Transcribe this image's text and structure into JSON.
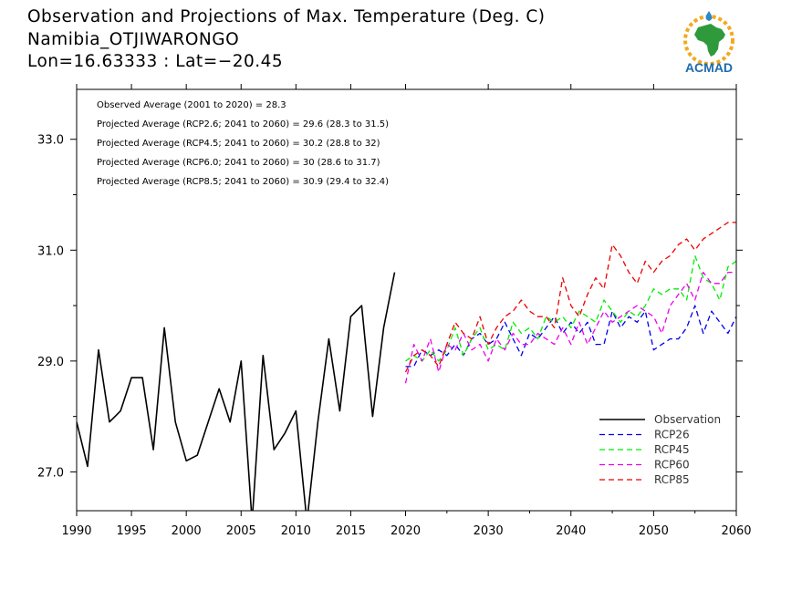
{
  "title": {
    "line1": "Observation and Projections of Max. Temperature (Deg. C)",
    "line2": "Namibia_OTJIWARONGO",
    "line3": "Lon=16.63333 : Lat=−20.45"
  },
  "logo": {
    "text": "ACMAD",
    "icon": "acmad-africa-logo"
  },
  "annotations": [
    "Observed Average (2001 to 2020) = 28.3",
    "Projected Average (RCP2.6; 2041 to 2060) = 29.6 (28.3 to 31.5)",
    "Projected Average (RCP4.5; 2041 to 2060) = 30.2 (28.8 to 32)",
    "Projected Average (RCP6.0; 2041 to 2060) = 30 (28.6 to 31.7)",
    "Projected Average (RCP8.5; 2041 to 2060) = 30.9 (29.4 to 32.4)"
  ],
  "chart_data": {
    "type": "line",
    "xlim": [
      1990,
      2060
    ],
    "ylim": [
      26.3,
      33.9
    ],
    "x_ticks": [
      "1990",
      "1995",
      "2000",
      "2005",
      "2010",
      "2015",
      "2020",
      "2030",
      "2040",
      "2050",
      "2060"
    ],
    "y_ticks": [
      "27.0",
      "29.0",
      "31.0",
      "33.0"
    ],
    "grid": false,
    "legend_placement": "bottom-right",
    "series": [
      {
        "name": "Observation",
        "color": "#000000",
        "dashed": false,
        "x": [
          1990,
          1991,
          1992,
          1993,
          1994,
          1995,
          1996,
          1997,
          1998,
          1999,
          2000,
          2001,
          2002,
          2003,
          2004,
          2005,
          2006,
          2007,
          2008,
          2009,
          2010,
          2011,
          2012,
          2013,
          2014,
          2015,
          2016,
          2017,
          2018,
          2019,
          2020
        ],
        "y": [
          27.9,
          27.1,
          29.2,
          27.9,
          28.1,
          28.7,
          28.7,
          27.4,
          29.6,
          27.9,
          27.2,
          27.3,
          27.9,
          28.5,
          27.9,
          29.0,
          26.1,
          29.1,
          27.4,
          27.7,
          28.1,
          26.1,
          27.9,
          29.4,
          28.1,
          29.8,
          30.0,
          28.0,
          29.6,
          30.6,
          null
        ]
      },
      {
        "name": "RCP26",
        "color": "#0000ee",
        "dashed": true,
        "x": [
          2020,
          2021,
          2022,
          2023,
          2024,
          2025,
          2026,
          2027,
          2028,
          2029,
          2030,
          2031,
          2032,
          2033,
          2034,
          2035,
          2036,
          2037,
          2038,
          2039,
          2040,
          2041,
          2042,
          2043,
          2044,
          2045,
          2046,
          2047,
          2048,
          2049,
          2050,
          2051,
          2052,
          2053,
          2054,
          2055,
          2056,
          2057,
          2058,
          2059,
          2060
        ],
        "y": [
          28.9,
          28.9,
          29.2,
          29.1,
          29.2,
          29.1,
          29.3,
          29.1,
          29.4,
          29.5,
          29.3,
          29.4,
          29.7,
          29.4,
          29.1,
          29.5,
          29.4,
          29.6,
          29.8,
          29.5,
          29.7,
          29.5,
          29.7,
          29.3,
          29.3,
          29.9,
          29.6,
          29.8,
          29.7,
          29.9,
          29.2,
          29.3,
          29.4,
          29.4,
          29.6,
          30.0,
          29.5,
          29.9,
          29.7,
          29.5,
          29.8
        ]
      },
      {
        "name": "RCP45",
        "color": "#00ee00",
        "dashed": true,
        "x": [
          2020,
          2021,
          2022,
          2023,
          2024,
          2025,
          2026,
          2027,
          2028,
          2029,
          2030,
          2031,
          2032,
          2033,
          2034,
          2035,
          2036,
          2037,
          2038,
          2039,
          2040,
          2041,
          2042,
          2043,
          2044,
          2045,
          2046,
          2047,
          2048,
          2049,
          2050,
          2051,
          2052,
          2053,
          2054,
          2055,
          2056,
          2057,
          2058,
          2059,
          2060
        ],
        "y": [
          29.0,
          29.1,
          29.0,
          29.2,
          29.0,
          29.2,
          29.6,
          29.1,
          29.4,
          29.6,
          29.2,
          29.3,
          29.2,
          29.7,
          29.5,
          29.6,
          29.4,
          29.8,
          29.7,
          29.8,
          29.6,
          29.9,
          29.8,
          29.7,
          30.1,
          29.9,
          29.7,
          29.9,
          29.8,
          30.0,
          30.3,
          30.2,
          30.3,
          30.3,
          30.1,
          30.9,
          30.5,
          30.4,
          30.1,
          30.7,
          30.8
        ]
      },
      {
        "name": "RCP60",
        "color": "#ee00ee",
        "dashed": true,
        "x": [
          2020,
          2021,
          2022,
          2023,
          2024,
          2025,
          2026,
          2027,
          2028,
          2029,
          2030,
          2031,
          2032,
          2033,
          2034,
          2035,
          2036,
          2037,
          2038,
          2039,
          2040,
          2041,
          2042,
          2043,
          2044,
          2045,
          2046,
          2047,
          2048,
          2049,
          2050,
          2051,
          2052,
          2053,
          2054,
          2055,
          2056,
          2057,
          2058,
          2059,
          2060
        ],
        "y": [
          28.6,
          29.3,
          29.0,
          29.4,
          28.8,
          29.3,
          29.2,
          29.5,
          29.2,
          29.3,
          29.0,
          29.4,
          29.2,
          29.5,
          29.3,
          29.3,
          29.5,
          29.4,
          29.3,
          29.6,
          29.3,
          29.7,
          29.3,
          29.6,
          29.9,
          29.7,
          29.8,
          29.9,
          30.0,
          29.9,
          29.8,
          29.5,
          30.0,
          30.2,
          30.4,
          30.1,
          30.6,
          30.4,
          30.4,
          30.6,
          30.6
        ]
      },
      {
        "name": "RCP85",
        "color": "#ee0000",
        "dashed": true,
        "x": [
          2020,
          2021,
          2022,
          2023,
          2024,
          2025,
          2026,
          2027,
          2028,
          2029,
          2030,
          2031,
          2032,
          2033,
          2034,
          2035,
          2036,
          2037,
          2038,
          2039,
          2040,
          2041,
          2042,
          2043,
          2044,
          2045,
          2046,
          2047,
          2048,
          2049,
          2050,
          2051,
          2052,
          2053,
          2054,
          2055,
          2056,
          2057,
          2058,
          2059,
          2060
        ],
        "y": [
          28.8,
          29.1,
          29.2,
          29.1,
          28.9,
          29.3,
          29.7,
          29.5,
          29.4,
          29.8,
          29.3,
          29.6,
          29.8,
          29.9,
          30.1,
          29.9,
          29.8,
          29.8,
          29.6,
          30.5,
          30.0,
          29.8,
          30.2,
          30.5,
          30.3,
          31.1,
          30.9,
          30.6,
          30.4,
          30.8,
          30.6,
          30.8,
          30.9,
          31.1,
          31.2,
          31.0,
          31.2,
          31.3,
          31.4,
          31.5,
          31.5
        ]
      }
    ]
  }
}
